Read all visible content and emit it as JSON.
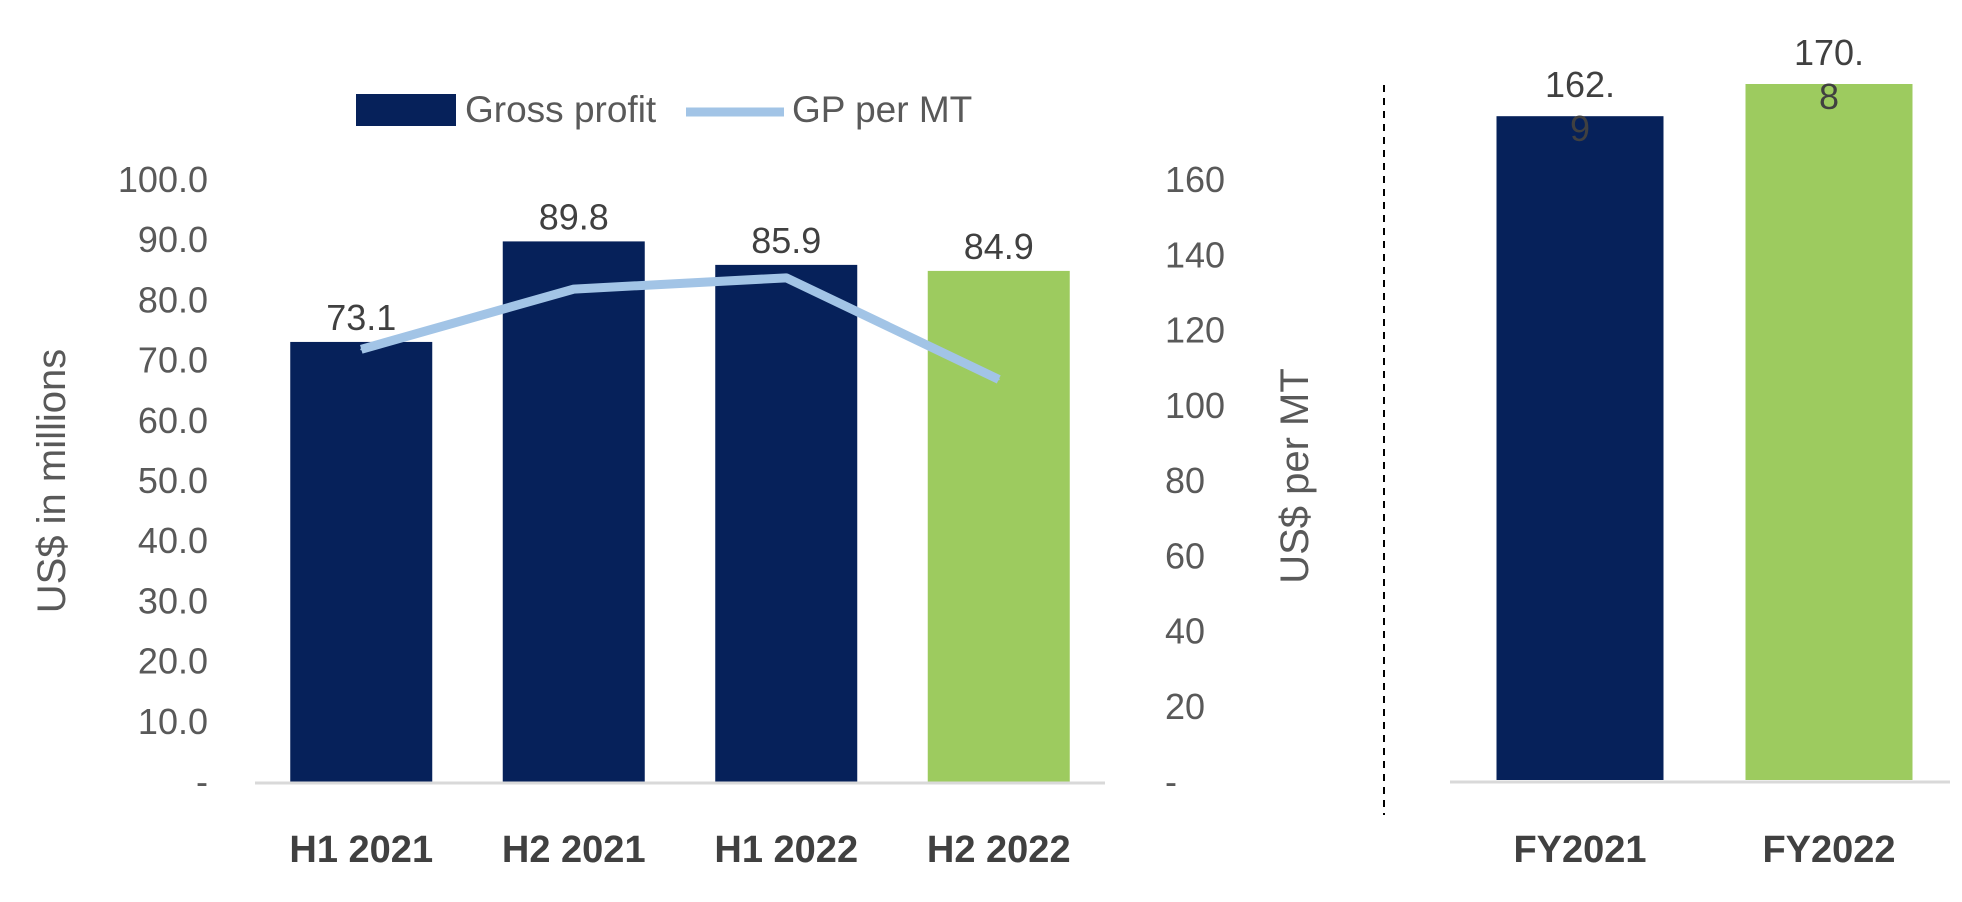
{
  "colors": {
    "navy": "#06215A",
    "green": "#9DCB5F",
    "line": "#A2C4E6",
    "axis": "#D9D9D9",
    "text": "#595959"
  },
  "chart_data": [
    {
      "type": "bar",
      "categories": [
        "H1 2021",
        "H2 2021",
        "H1 2022",
        "H2 2022"
      ],
      "series": [
        {
          "name": "Gross profit",
          "axis": "left",
          "values": [
            73.1,
            89.8,
            85.9,
            84.9
          ],
          "colors": [
            "#06215A",
            "#06215A",
            "#06215A",
            "#9DCB5F"
          ],
          "labels": [
            "73.1",
            "89.8",
            "85.9",
            "84.9"
          ]
        },
        {
          "name": "GP per MT",
          "type": "line",
          "axis": "right",
          "values": [
            115,
            131,
            134,
            107
          ],
          "color": "#A2C4E6"
        }
      ],
      "ylabel": "US$ in millions",
      "ylim": [
        0,
        100
      ],
      "yticks": [
        "-",
        "10.0",
        "20.0",
        "30.0",
        "40.0",
        "50.0",
        "60.0",
        "70.0",
        "80.0",
        "90.0",
        "100.0"
      ],
      "y2label": "US$ per MT",
      "y2lim": [
        0,
        160
      ],
      "y2ticks": [
        "-",
        "20",
        "40",
        "60",
        "80",
        "100",
        "120",
        "140",
        "160"
      ],
      "legend": [
        "Gross profit",
        "GP per MT"
      ],
      "legend_position": "top-center",
      "grid": false
    },
    {
      "type": "bar",
      "categories": [
        "FY2021",
        "FY2022"
      ],
      "values": [
        162.9,
        170.8
      ],
      "colors": [
        "#06215A",
        "#9DCB5F"
      ],
      "labels": [
        [
          "162.",
          "9"
        ],
        [
          "170.",
          "8"
        ]
      ],
      "ylim": [
        0,
        170.8
      ],
      "grid": false
    }
  ]
}
